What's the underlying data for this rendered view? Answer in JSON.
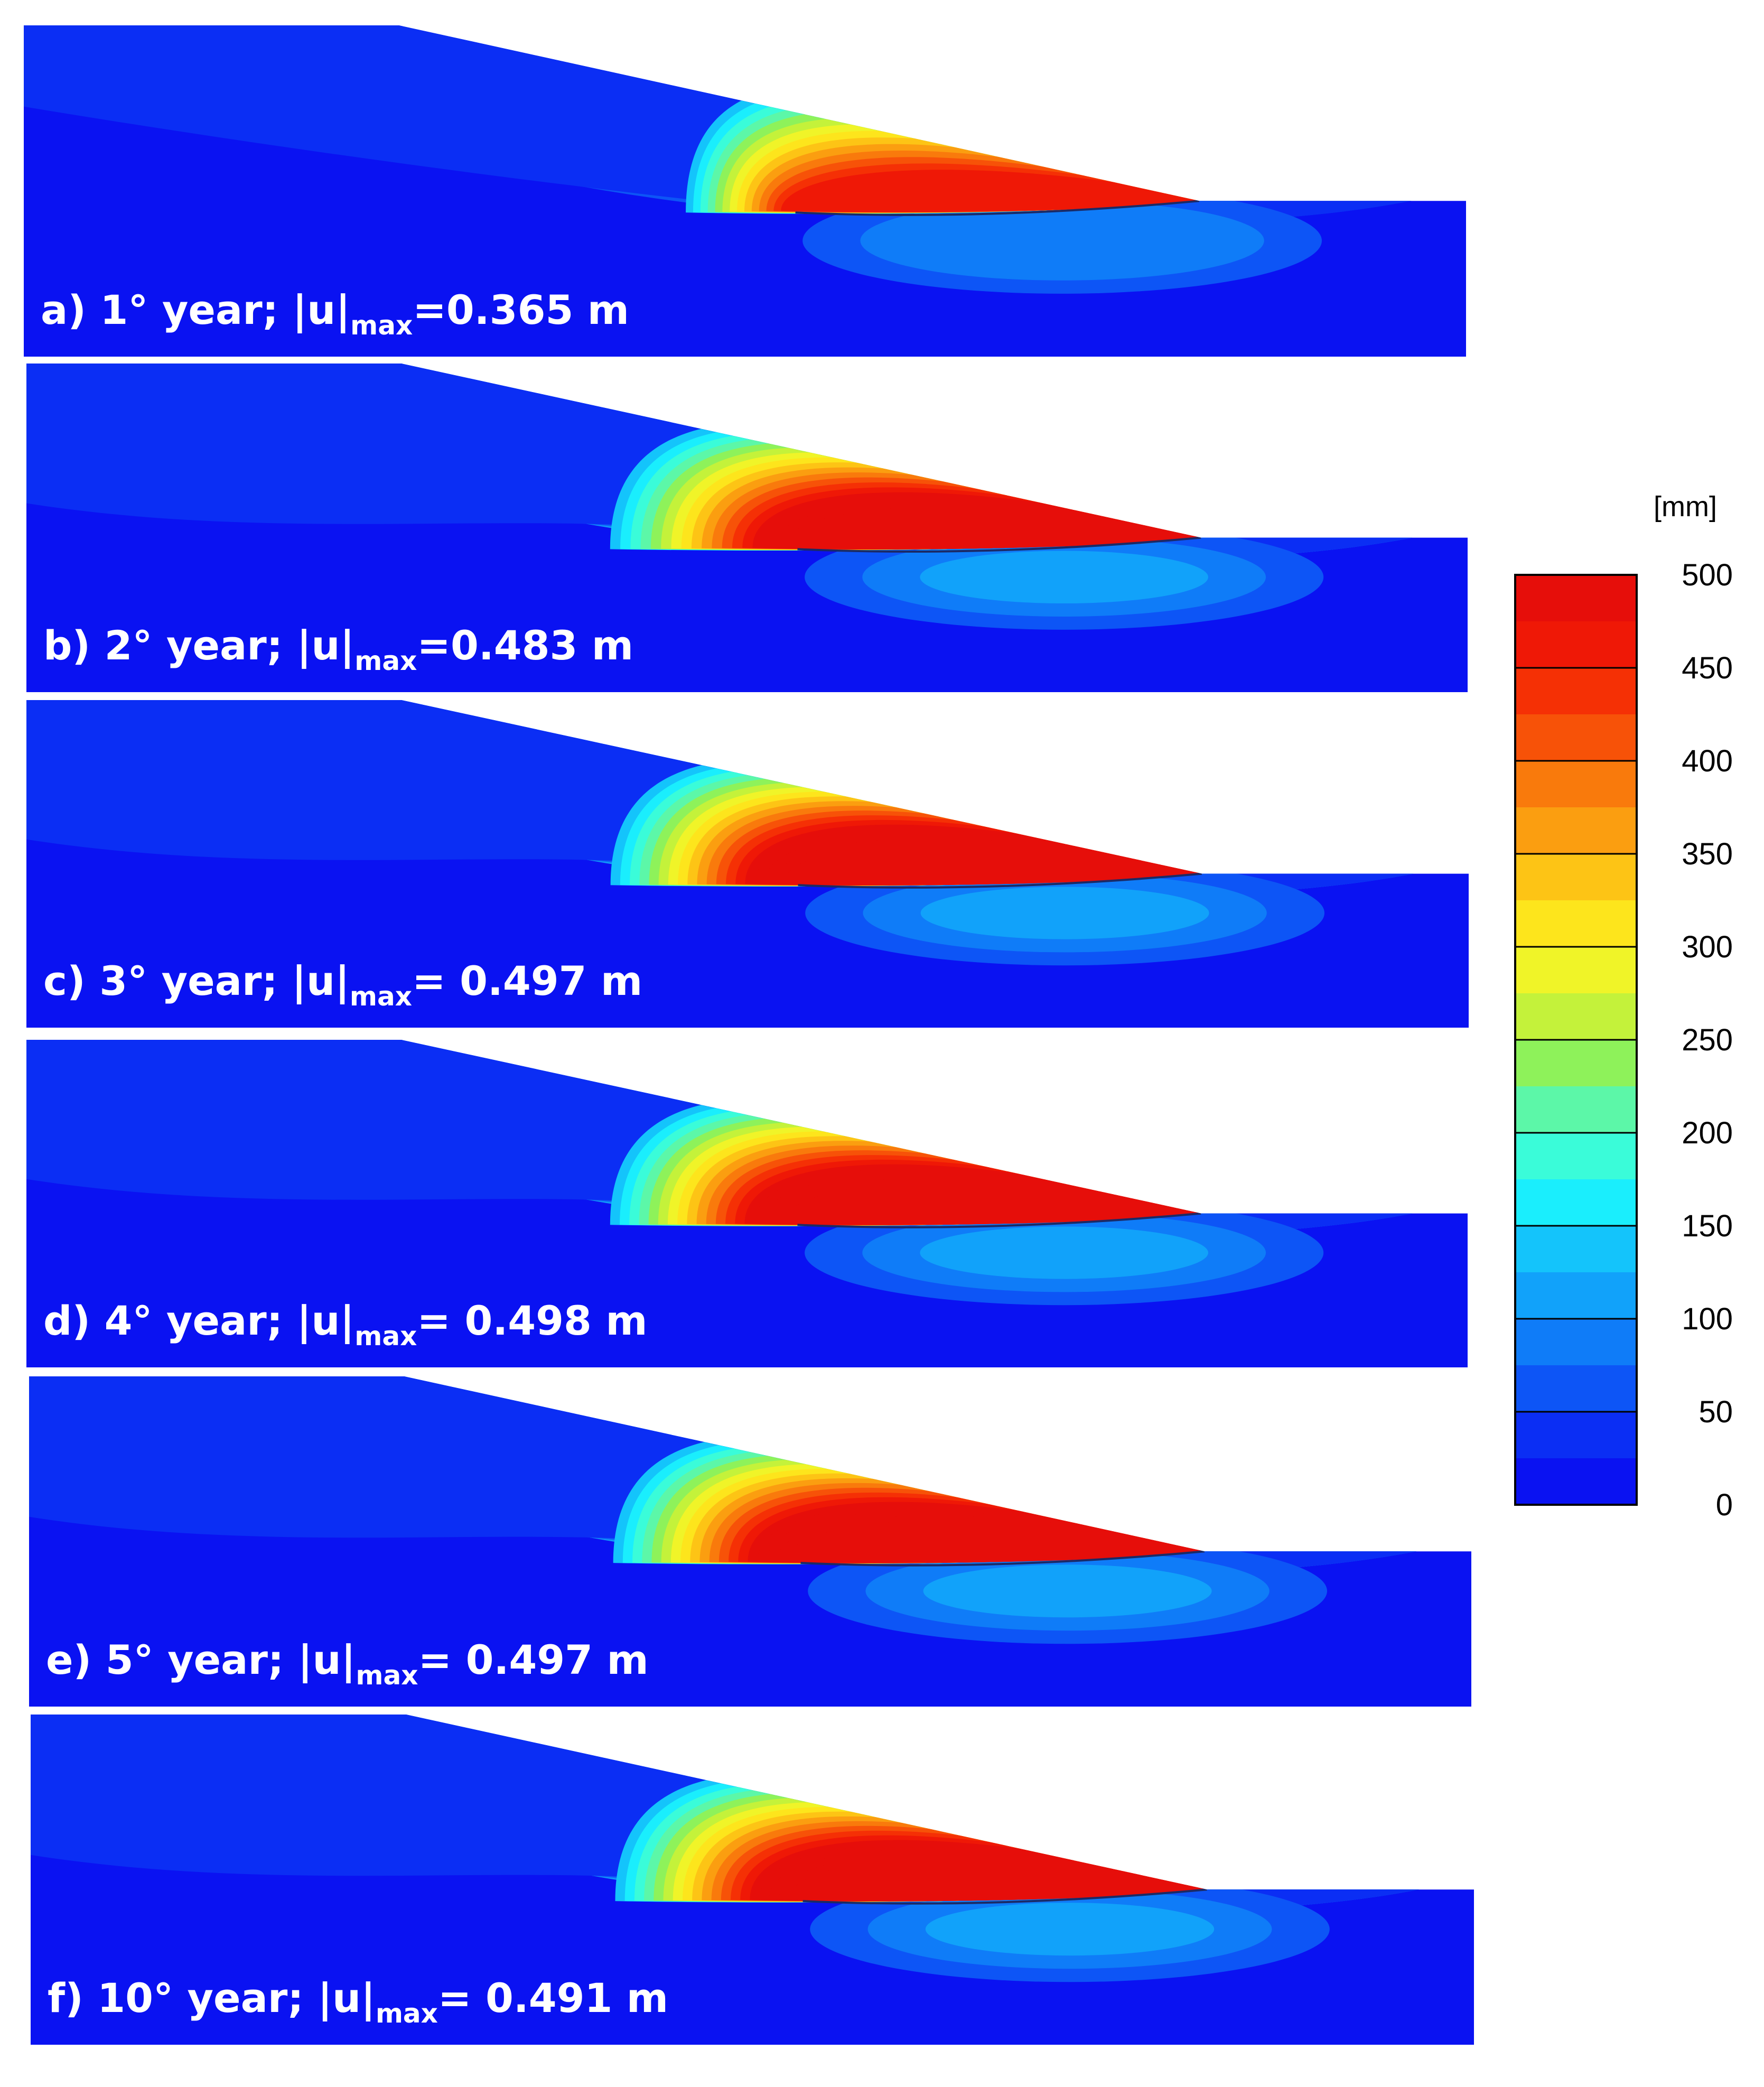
{
  "colors": {
    "band_0": "#0a12f2",
    "band_1": "#0b2ef4",
    "band_2": "#0d55f6",
    "band_3": "#0f7cf8",
    "band_4": "#11a2fa",
    "band_5": "#14c4fb",
    "band_6": "#1aeefd",
    "band_7": "#3afcd9",
    "band_8": "#5cf7a8",
    "band_9": "#8ef25a",
    "band_10": "#c4f23a",
    "band_11": "#f0f428",
    "band_12": "#fde51c",
    "band_13": "#fdc415",
    "band_14": "#fb9e10",
    "band_15": "#f97a0c",
    "band_16": "#f75208",
    "band_17": "#f53005",
    "band_18": "#ef1806",
    "band_19": "#e60e0a"
  },
  "panels": [
    {
      "letter": "a)",
      "year": "1° year;",
      "symbol": "|u|",
      "subscript": "max",
      "value": "=0.365 m",
      "peak": 0.73
    },
    {
      "letter": "b)",
      "year": "2° year;",
      "symbol": "|u|",
      "subscript": "max",
      "value": "=0.483 m",
      "peak": 0.97
    },
    {
      "letter": "c)",
      "year": "3° year;",
      "symbol": "|u|",
      "subscript": "max",
      "value": "= 0.497 m",
      "peak": 0.99
    },
    {
      "letter": "d)",
      "year": "4° year;",
      "symbol": "|u|",
      "subscript": "max",
      "value": "= 0.498 m",
      "peak": 1.0
    },
    {
      "letter": "e)",
      "year": "5° year;",
      "symbol": "|u|",
      "subscript": "max",
      "value": "= 0.497 m",
      "peak": 0.99
    },
    {
      "letter": "f)",
      "year": "10° year;",
      "symbol": "|u|",
      "subscript": "max",
      "value": "= 0.491 m",
      "peak": 0.98
    }
  ],
  "colorbar": {
    "unit": "[mm]",
    "ticks": [
      "500",
      "450",
      "400",
      "350",
      "300",
      "250",
      "200",
      "150",
      "100",
      "50",
      "0"
    ],
    "min": 0,
    "max": 500,
    "bands": 20
  }
}
